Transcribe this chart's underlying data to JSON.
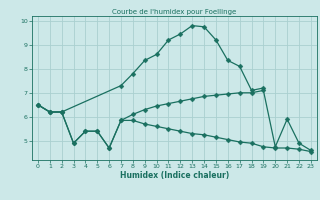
{
  "title": "Courbe de l'humidex pour Foellinge",
  "xlabel": "Humidex (Indice chaleur)",
  "bg_color": "#cce8e8",
  "grid_color": "#aad0d0",
  "line_color": "#1a7060",
  "xlim": [
    -0.5,
    23.5
  ],
  "ylim": [
    4.2,
    10.2
  ],
  "xticks": [
    0,
    1,
    2,
    3,
    4,
    5,
    6,
    7,
    8,
    9,
    10,
    11,
    12,
    13,
    14,
    15,
    16,
    17,
    18,
    19,
    20,
    21,
    22,
    23
  ],
  "yticks": [
    5,
    6,
    7,
    8,
    9,
    10
  ],
  "lines": [
    {
      "x": [
        0,
        1,
        2,
        7,
        8,
        9,
        10,
        11,
        12,
        13,
        14,
        15,
        16,
        17,
        18,
        19
      ],
      "y": [
        6.5,
        6.2,
        6.2,
        7.3,
        7.8,
        8.35,
        8.6,
        9.2,
        9.45,
        9.8,
        9.75,
        9.2,
        8.35,
        8.1,
        7.1,
        7.2
      ]
    },
    {
      "x": [
        0,
        1,
        2,
        3,
        4,
        5,
        6,
        7,
        8,
        9,
        10,
        11,
        12,
        13,
        14,
        15,
        16,
        17,
        18,
        19,
        20,
        21,
        22,
        23
      ],
      "y": [
        6.5,
        6.2,
        6.2,
        4.9,
        5.4,
        5.4,
        4.7,
        5.85,
        6.1,
        6.3,
        6.45,
        6.55,
        6.65,
        6.75,
        6.85,
        6.9,
        6.95,
        7.0,
        7.0,
        7.1,
        4.75,
        5.9,
        4.9,
        4.6
      ]
    },
    {
      "x": [
        0,
        1,
        2,
        3,
        4,
        5,
        6,
        7,
        8,
        9,
        10,
        11,
        12,
        13,
        14,
        15,
        16,
        17,
        18,
        19,
        20,
        21,
        22,
        23
      ],
      "y": [
        6.5,
        6.2,
        6.2,
        4.9,
        5.4,
        5.4,
        4.7,
        5.85,
        5.85,
        5.7,
        5.6,
        5.5,
        5.4,
        5.3,
        5.25,
        5.15,
        5.05,
        4.95,
        4.9,
        4.75,
        4.7,
        4.7,
        4.65,
        4.55
      ]
    }
  ],
  "markersize": 2.5,
  "linewidth": 0.9
}
